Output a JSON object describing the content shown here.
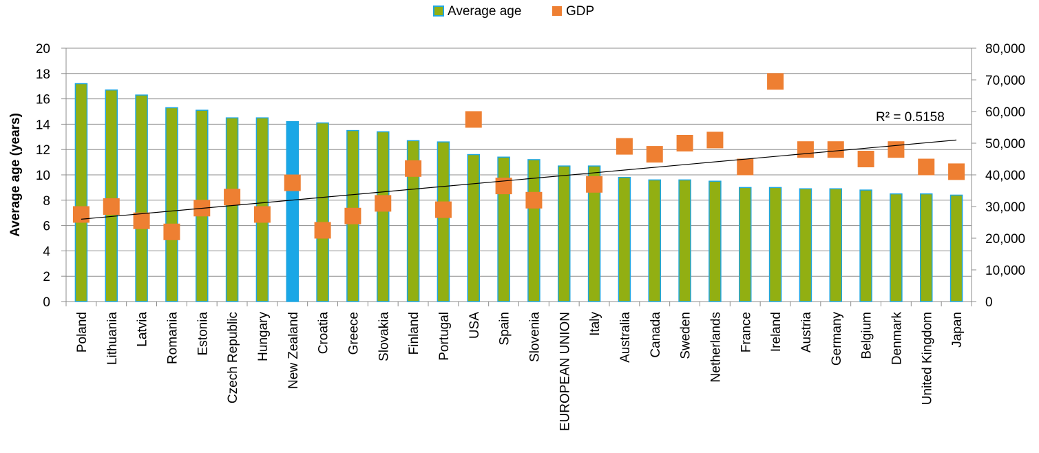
{
  "chart_data": {
    "type": "bar",
    "title": "",
    "ylabel": "Average age (years)",
    "y2label": "",
    "ylim": [
      0,
      20
    ],
    "y_ticks": [
      "0",
      "2",
      "4",
      "6",
      "8",
      "10",
      "12",
      "14",
      "16",
      "18",
      "20"
    ],
    "y2lim": [
      0,
      80000
    ],
    "y2_ticks": [
      "0",
      "10,000",
      "20,000",
      "30,000",
      "40,000",
      "50,000",
      "60,000",
      "70,000",
      "80,000"
    ],
    "grid": true,
    "legend_position": "top",
    "legend": [
      "Average age",
      "GDP"
    ],
    "categories": [
      "Poland",
      "Lithuania",
      "Latvia",
      "Romania",
      "Estonia",
      "Czech  Republic",
      "Hungary",
      "New Zealand",
      "Croatia",
      "Greece",
      "Slovakia",
      "Finland",
      "Portugal",
      "USA",
      "Spain",
      "Slovenia",
      "EUROPEAN UNION",
      "Italy",
      "Australia",
      "Canada",
      "Sweden",
      "Netherlands",
      "France",
      "Ireland",
      "Austria",
      "Germany",
      "Belgium",
      "Denmark",
      "United Kingdom",
      "Japan"
    ],
    "series": [
      {
        "name": "Average age",
        "kind": "bar",
        "axis": "left",
        "color": "#92AF12",
        "border_color": "#1FA6E0",
        "highlight_color": "#1AA7E6",
        "highlight_category": "New Zealand",
        "values": [
          17.2,
          16.7,
          16.3,
          15.3,
          15.1,
          14.5,
          14.5,
          14.2,
          14.1,
          13.5,
          13.4,
          12.7,
          12.6,
          11.6,
          11.4,
          11.2,
          10.7,
          10.7,
          9.8,
          9.6,
          9.6,
          9.5,
          9.0,
          9.0,
          8.9,
          8.9,
          8.8,
          8.5,
          8.5,
          8.4
        ]
      },
      {
        "name": "GDP",
        "kind": "marker",
        "axis": "right",
        "color": "#EE7F32",
        "values": [
          27500,
          30000,
          25500,
          22000,
          29500,
          33000,
          27500,
          37500,
          22500,
          27000,
          31000,
          42000,
          29000,
          57500,
          36500,
          32000,
          null,
          37000,
          49000,
          46500,
          50000,
          51000,
          42500,
          69500,
          48000,
          48000,
          45000,
          48000,
          42500,
          41000
        ]
      }
    ],
    "trendline": {
      "series": "GDP",
      "type": "linear",
      "start_value": 26000,
      "end_value": 51000,
      "r2_label": "R² = 0.5158",
      "color": "#000000"
    }
  }
}
